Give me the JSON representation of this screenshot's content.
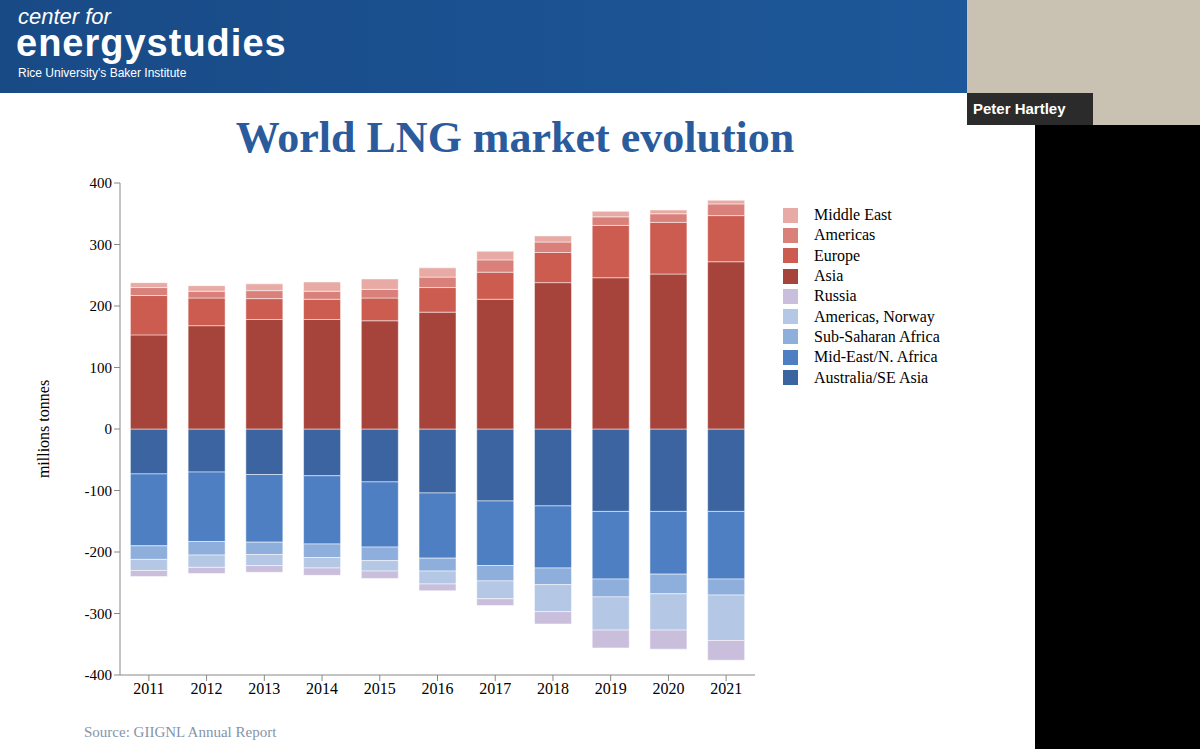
{
  "slide": {
    "header": {
      "line1": "center for",
      "line2": "energystudies",
      "line3": "Rice University's Baker Institute"
    },
    "speaker": "Peter Hartley"
  },
  "chart_data": {
    "type": "bar",
    "title": "World LNG market evolution",
    "y_label": "millions tonnes",
    "annotations": [
      "Source: GIIGNL Annual Report"
    ],
    "categories": [
      "2011",
      "2012",
      "2013",
      "2014",
      "2015",
      "2016",
      "2017",
      "2018",
      "2019",
      "2020",
      "2021"
    ],
    "series": [
      {
        "name": "Middle East",
        "color": "#e8aaa5",
        "values": [
          8,
          9,
          11,
          15,
          17,
          15,
          14,
          10,
          9,
          6,
          6
        ]
      },
      {
        "name": "Americas",
        "color": "#d9807a",
        "values": [
          13,
          11,
          13,
          13,
          14,
          17,
          20,
          17,
          14,
          14,
          19
        ]
      },
      {
        "name": "Europe",
        "color": "#cc5b50",
        "values": [
          64,
          45,
          34,
          33,
          37,
          40,
          44,
          49,
          85,
          84,
          75
        ]
      },
      {
        "name": "Asia",
        "color": "#a6433b",
        "values": [
          153,
          168,
          178,
          178,
          176,
          190,
          211,
          238,
          246,
          252,
          272
        ]
      },
      {
        "name": "Russia",
        "color": "#c9bfdc",
        "values": [
          -10,
          -10,
          -11,
          -12,
          -12,
          -11,
          -11,
          -20,
          -29,
          -31,
          -32
        ]
      },
      {
        "name": "Americas, Norway",
        "color": "#b4c8e6",
        "values": [
          -18,
          -20,
          -18,
          -17,
          -17,
          -21,
          -29,
          -44,
          -54,
          -59,
          -74
        ]
      },
      {
        "name": "Sub-Saharan Africa",
        "color": "#8eaedb",
        "values": [
          -22,
          -22,
          -20,
          -22,
          -22,
          -21,
          -25,
          -27,
          -29,
          -32,
          -26
        ]
      },
      {
        "name": "Mid-East/N. Africa",
        "color": "#4f7fc3",
        "values": [
          -117,
          -113,
          -110,
          -111,
          -106,
          -106,
          -105,
          -101,
          -110,
          -102,
          -110
        ]
      },
      {
        "name": "Australia/SE Asia",
        "color": "#3b64a0",
        "values": [
          -73,
          -70,
          -74,
          -76,
          -86,
          -104,
          -117,
          -125,
          -134,
          -134,
          -134
        ]
      }
    ],
    "ylim": [
      -400,
      400
    ],
    "yticks": [
      -400,
      -300,
      -200,
      -100,
      0,
      100,
      200,
      300,
      400
    ],
    "grid": false,
    "stacked": true,
    "legend": "right"
  }
}
